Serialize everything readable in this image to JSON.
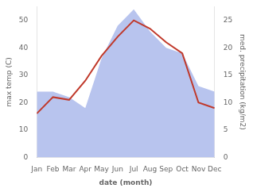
{
  "chart_data": {
    "type": "line",
    "xlabel": "date (month)",
    "ylabel": "max temp (C)",
    "y2label": "med. precipitation (kg/m2)",
    "categories": [
      "Jan",
      "Feb",
      "Mar",
      "Apr",
      "May",
      "Jun",
      "Jul",
      "Aug",
      "Sep",
      "Oct",
      "Nov",
      "Dec"
    ],
    "series": [
      {
        "type": "line",
        "color": "#c0392b",
        "values": [
          16,
          22,
          21,
          28,
          37,
          44,
          50,
          47,
          42,
          38,
          20,
          18
        ]
      },
      {
        "type": "area",
        "color": "#b8c4ee",
        "axis": "y2",
        "values": [
          12,
          12,
          11,
          9,
          18,
          24,
          27,
          23,
          20,
          19,
          13,
          12
        ]
      }
    ],
    "ylim": [
      0,
      55
    ],
    "yticks": [
      0,
      10,
      20,
      30,
      40,
      50
    ],
    "y2lim": [
      0,
      27.5
    ],
    "y2ticks": [
      0,
      5,
      10,
      15,
      20,
      25
    ],
    "grid": false
  }
}
